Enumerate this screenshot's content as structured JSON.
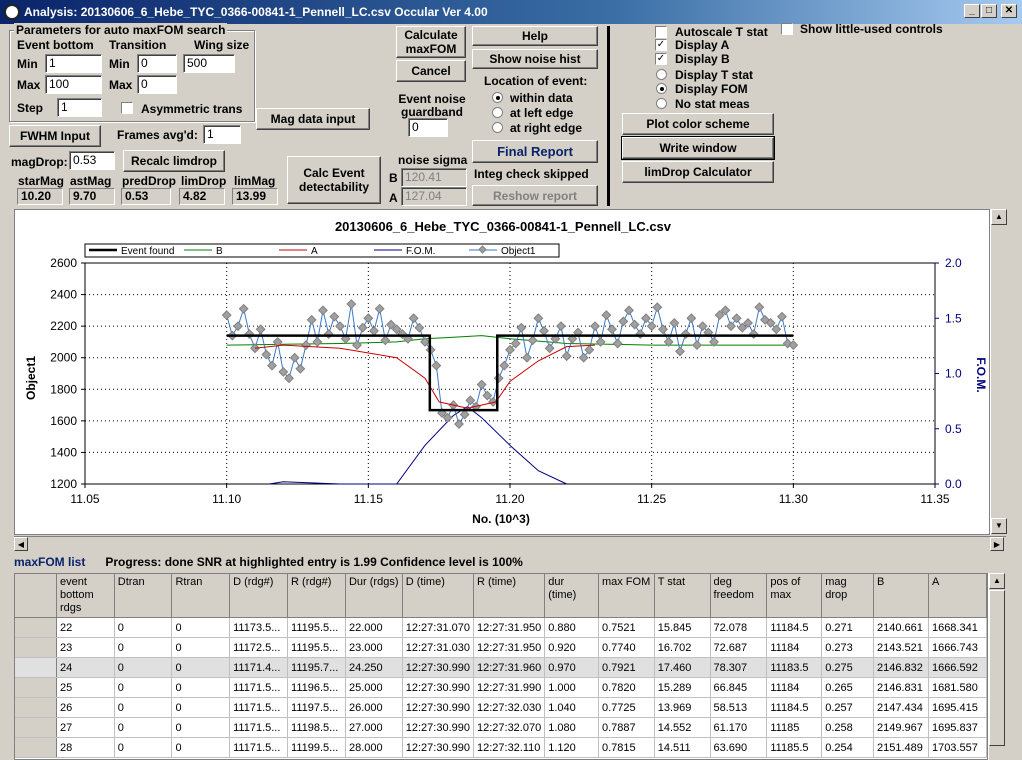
{
  "window": {
    "title": "Analysis: 20130606_6_Hebe_TYC_0366-00841-1_Pennell_LC.csv  Occular Ver 4.00",
    "min_glyph": "_",
    "max_glyph": "□",
    "close_glyph": "✕"
  },
  "params": {
    "group_title": "Parameters for auto maxFOM search",
    "event_bottom_label": "Event bottom",
    "transition_label": "Transition",
    "wing_size_label": "Wing size",
    "min_label": "Min",
    "max_label": "Max",
    "step_label": "Step",
    "event_min": "1",
    "event_max": "100",
    "event_step": "1",
    "trans_min_label": "Min",
    "trans_max_label": "Max",
    "trans_min": "0",
    "trans_max": "0",
    "wing_size": "500",
    "asym_label": "Asymmetric trans",
    "asym_checked": false
  },
  "controls": {
    "fwhm_button": "FWHM Input",
    "frames_label": "Frames avg'd:",
    "frames_value": "1",
    "mag_data_button": "Mag data input",
    "magdrop_label": "magDrop:",
    "magdrop_value": "0.53",
    "recalc_button": "Recalc limdrop",
    "calc_maxfom_button": "Calculate maxFOM",
    "cancel_button": "Cancel",
    "help_button": "Help",
    "show_noise_button": "Show noise hist",
    "guardband_label": "Event noise guardband",
    "guardband_value": "0",
    "location_label": "Location of event:",
    "loc_within": "within data",
    "loc_left": "at left edge",
    "loc_right": "at right edge",
    "calc_event_button": "Calc Event detectability",
    "noise_sigma_label": "noise sigma",
    "b_label": "B",
    "a_label": "A",
    "noise_b": "120.41",
    "noise_a": "127.04",
    "final_report_button": "Final Report",
    "integ_label": "Integ check skipped",
    "reshow_button": "Reshow report"
  },
  "mags": {
    "items": [
      {
        "label": "starMag",
        "value": "10.20"
      },
      {
        "label": "astMag",
        "value": "9.70"
      },
      {
        "label": "predDrop",
        "value": "0.53"
      },
      {
        "label": "limDrop",
        "value": "4.82"
      },
      {
        "label": "limMag",
        "value": "13.99"
      }
    ]
  },
  "options": {
    "autoscale": "Autoscale T stat",
    "autoscale_checked": false,
    "show_little": "Show little-used controls",
    "show_little_checked": false,
    "display_a": "Display A",
    "display_a_checked": true,
    "display_b": "Display B",
    "display_b_checked": true,
    "display_t": "Display T stat",
    "display_fom": "Display FOM",
    "no_stat": "No stat meas",
    "plot_color_button": "Plot color scheme",
    "write_window_button": "Write window",
    "limdrop_button": "limDrop Calculator"
  },
  "chart_data": {
    "type": "line",
    "title": "20130606_6_Hebe_TYC_0366-00841-1_Pennell_LC.csv",
    "xlabel": "No. (10^3)",
    "ylabel": "Object1",
    "y2label": "F.O.M.",
    "xlim": [
      11.05,
      11.35
    ],
    "ylim": [
      1200,
      2600
    ],
    "y2lim": [
      0,
      2.0
    ],
    "x_ticks": [
      "11.05",
      "11.10",
      "11.15",
      "11.20",
      "11.25",
      "11.30",
      "11.35"
    ],
    "y_ticks": [
      "1200",
      "1400",
      "1600",
      "1800",
      "2000",
      "2200",
      "2400",
      "2600"
    ],
    "y2_ticks": [
      "0.0",
      "0.5",
      "1.0",
      "1.5",
      "2.0"
    ],
    "grid": true,
    "legend_position": "top",
    "legend": [
      "Event found",
      "B",
      "A",
      "F.O.M.",
      "Object1"
    ],
    "colors": {
      "event": "#000000",
      "b": "#008000",
      "a": "#cc0000",
      "fom": "#000080",
      "object": "#3a78c8",
      "marker": "#a0a0a0"
    },
    "event_found": {
      "x": [
        11.1,
        11.1717,
        11.1717,
        11.1955,
        11.1955,
        11.3
      ],
      "y": [
        2140,
        2140,
        1668,
        1668,
        2140,
        2140
      ]
    },
    "series": [
      {
        "name": "B",
        "x": [
          11.1,
          11.12,
          11.14,
          11.16,
          11.17,
          11.18,
          11.19,
          11.2,
          11.22,
          11.25,
          11.3
        ],
        "y": [
          2080,
          2085,
          2090,
          2100,
          2120,
          2130,
          2140,
          2120,
          2090,
          2080,
          2080
        ]
      },
      {
        "name": "A",
        "x": [
          11.11,
          11.12,
          11.14,
          11.16,
          11.17,
          11.175,
          11.185,
          11.195,
          11.2,
          11.21,
          11.22,
          11.23
        ],
        "y": [
          2060,
          2080,
          2060,
          2000,
          1870,
          1720,
          1680,
          1720,
          1850,
          1980,
          2070,
          2080
        ]
      },
      {
        "name": "F.O.M.",
        "x": [
          11.115,
          11.12,
          11.13,
          11.14,
          11.16,
          11.17,
          11.18,
          11.185,
          11.19,
          11.2,
          11.21,
          11.22
        ],
        "y": [
          0.0,
          0.02,
          0.01,
          0.0,
          0.0,
          0.35,
          0.62,
          0.7,
          0.6,
          0.35,
          0.12,
          0.0
        ]
      },
      {
        "name": "Object1",
        "x": [
          11.1,
          11.102,
          11.104,
          11.106,
          11.108,
          11.11,
          11.112,
          11.114,
          11.116,
          11.118,
          11.12,
          11.122,
          11.124,
          11.126,
          11.128,
          11.13,
          11.132,
          11.134,
          11.136,
          11.138,
          11.14,
          11.142,
          11.144,
          11.146,
          11.148,
          11.15,
          11.152,
          11.154,
          11.156,
          11.158,
          11.16,
          11.162,
          11.164,
          11.166,
          11.168,
          11.17,
          11.172,
          11.174,
          11.176,
          11.178,
          11.18,
          11.182,
          11.184,
          11.186,
          11.188,
          11.19,
          11.192,
          11.194,
          11.196,
          11.198,
          11.2,
          11.202,
          11.204,
          11.206,
          11.208,
          11.21,
          11.212,
          11.214,
          11.216,
          11.218,
          11.22,
          11.222,
          11.224,
          11.226,
          11.228,
          11.23,
          11.232,
          11.234,
          11.236,
          11.238,
          11.24,
          11.242,
          11.244,
          11.246,
          11.248,
          11.25,
          11.252,
          11.254,
          11.256,
          11.258,
          11.26,
          11.262,
          11.264,
          11.266,
          11.268,
          11.27,
          11.272,
          11.274,
          11.276,
          11.278,
          11.28,
          11.282,
          11.284,
          11.286,
          11.288,
          11.29,
          11.292,
          11.294,
          11.296,
          11.298,
          11.3
        ],
        "y": [
          2270,
          2140,
          2200,
          2310,
          2150,
          2060,
          2180,
          2020,
          1950,
          2100,
          1910,
          1870,
          2000,
          1930,
          2080,
          2240,
          2100,
          2300,
          2150,
          2260,
          2200,
          2120,
          2340,
          2080,
          2190,
          2250,
          2170,
          2310,
          2110,
          2210,
          2180,
          2150,
          2120,
          2250,
          2190,
          2100,
          2050,
          1950,
          1650,
          1620,
          1700,
          1580,
          1640,
          1730,
          1690,
          1830,
          1760,
          1720,
          1870,
          1950,
          2050,
          2090,
          2190,
          2000,
          2110,
          2250,
          2170,
          2060,
          2120,
          2200,
          2010,
          2120,
          2160,
          2000,
          2050,
          2200,
          2100,
          2270,
          2180,
          2090,
          2230,
          2300,
          2210,
          2150,
          2250,
          2200,
          2320,
          2180,
          2100,
          2220,
          2040,
          2150,
          2250,
          2080,
          2200,
          2160,
          2100,
          2270,
          2300,
          2200,
          2250,
          2190,
          2220,
          2150,
          2320,
          2240,
          2220,
          2180,
          2260,
          2090,
          2080
        ]
      }
    ]
  },
  "status": {
    "list_label": "maxFOM list",
    "progress": "Progress: done  SNR at highlighted entry is 1.99   Confidence level is  100%"
  },
  "table": {
    "headers": [
      "event bottom rdgs",
      "Dtran",
      "Rtran",
      "D (rdg#)",
      "R (rdg#)",
      "Dur (rdgs)",
      "D (time)",
      "R (time)",
      "dur (time)",
      "max FOM",
      "T stat",
      "deg freedom",
      "pos of max",
      "mag drop",
      "B",
      "A"
    ],
    "rows": [
      [
        "22",
        "0",
        "0",
        "11173.5...",
        "11195.5...",
        "22.000",
        "12:27:31.070",
        "12:27:31.950",
        "0.880",
        "0.7521",
        "15.845",
        "72.078",
        "11184.5",
        "0.271",
        "2140.661",
        "1668.341"
      ],
      [
        "23",
        "0",
        "0",
        "11172.5...",
        "11195.5...",
        "23.000",
        "12:27:31.030",
        "12:27:31.950",
        "0.920",
        "0.7740",
        "16.702",
        "72.687",
        "11184",
        "0.273",
        "2143.521",
        "1666.743"
      ],
      [
        "24",
        "0",
        "0",
        "11171.4...",
        "11195.7...",
        "24.250",
        "12:27:30.990",
        "12:27:31.960",
        "0.970",
        "0.7921",
        "17.460",
        "78.307",
        "11183.5",
        "0.275",
        "2146.832",
        "1666.592"
      ],
      [
        "25",
        "0",
        "0",
        "11171.5...",
        "11196.5...",
        "25.000",
        "12:27:30.990",
        "12:27:31.990",
        "1.000",
        "0.7820",
        "15.289",
        "66.845",
        "11184",
        "0.265",
        "2146.831",
        "1681.580"
      ],
      [
        "26",
        "0",
        "0",
        "11171.5...",
        "11197.5...",
        "26.000",
        "12:27:30.990",
        "12:27:32.030",
        "1.040",
        "0.7725",
        "13.969",
        "58.513",
        "11184.5",
        "0.257",
        "2147.434",
        "1695.415"
      ],
      [
        "27",
        "0",
        "0",
        "11171.5...",
        "11198.5...",
        "27.000",
        "12:27:30.990",
        "12:27:32.070",
        "1.080",
        "0.7887",
        "14.552",
        "61.170",
        "11185",
        "0.258",
        "2149.967",
        "1695.837"
      ],
      [
        "28",
        "0",
        "0",
        "11171.5...",
        "11199.5...",
        "28.000",
        "12:27:30.990",
        "12:27:32.110",
        "1.120",
        "0.7815",
        "14.511",
        "63.690",
        "11185.5",
        "0.254",
        "2151.489",
        "1703.557"
      ]
    ],
    "selected_row": 2
  }
}
